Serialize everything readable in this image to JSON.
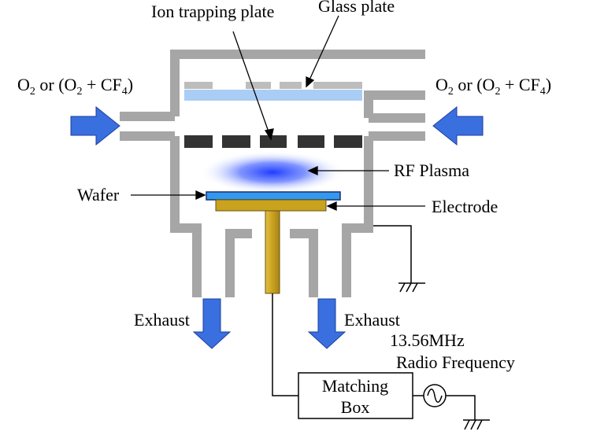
{
  "labels": {
    "ion_trapping_plate": "Ion trapping plate",
    "glass_plate": "Glass plate",
    "gas_inlet_left": {
      "prefix": "O",
      "sub1": "2",
      "mid": " or (O",
      "sub2": "2",
      "plus": " + CF",
      "sub3": "4",
      "close": ")"
    },
    "gas_inlet_right": {
      "prefix": "O",
      "sub1": "2",
      "mid": " or (O",
      "sub2": "2",
      "plus": " + CF",
      "sub3": "4",
      "close": ")"
    },
    "rf_plasma": "RF Plasma",
    "wafer": "Wafer",
    "electrode": "Electrode",
    "exhaust_left": "Exhaust",
    "exhaust_right": "Exhaust",
    "frequency": "13.56MHz",
    "radio_frequency": "Radio Frequency",
    "matching_box_line1": "Matching",
    "matching_box_line2": "Box"
  },
  "colors": {
    "chamber_wall": "#a6a6a6",
    "arrow_blue": "#3a6fe0",
    "glass_plate": "#a9cdf5",
    "ion_plate": "#333333",
    "plasma": "#1f3cff",
    "wafer": "#3399ee",
    "electrode": "#c9a21f"
  }
}
